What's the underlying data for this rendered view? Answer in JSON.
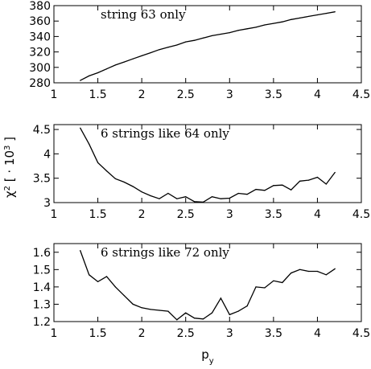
{
  "shared": {
    "xlabel": "p",
    "xlabel_sub": "y",
    "ylabel": "χ",
    "ylabel_sup": "2",
    "ylabel_rest": " [ · 10",
    "ylabel_sup2": "3",
    "ylabel_end": " ]"
  },
  "chart_data": [
    {
      "type": "line",
      "title": "string 63 only",
      "xlim": [
        1,
        4.5
      ],
      "ylim": [
        280,
        380
      ],
      "x_ticks": [
        1,
        1.5,
        2,
        2.5,
        3,
        3.5,
        4,
        4.5
      ],
      "x_tick_labels": [
        "1",
        "1.5",
        "2",
        "2.5",
        "3",
        "3.5",
        "4",
        "4.5"
      ],
      "y_ticks": [
        280,
        300,
        320,
        340,
        360,
        380
      ],
      "y_tick_labels": [
        "280",
        "300",
        "320",
        "340",
        "360",
        "380"
      ],
      "series": [
        {
          "x": [
            1.3,
            1.4,
            1.5,
            1.6,
            1.7,
            1.8,
            1.9,
            2.0,
            2.1,
            2.2,
            2.3,
            2.4,
            2.5,
            2.6,
            2.7,
            2.8,
            2.9,
            3.0,
            3.1,
            3.2,
            3.3,
            3.4,
            3.5,
            3.6,
            3.7,
            3.8,
            3.9,
            4.0,
            4.1,
            4.2
          ],
          "y": [
            283,
            289,
            293,
            298,
            303,
            307,
            311,
            315,
            319,
            323,
            326,
            329,
            333,
            335,
            338,
            341,
            343,
            345,
            348,
            350,
            352,
            355,
            357,
            359,
            362,
            364,
            366,
            368,
            370,
            372
          ]
        }
      ]
    },
    {
      "type": "line",
      "title": "6 strings like 64 only",
      "xlim": [
        1,
        4.5
      ],
      "ylim": [
        3,
        4.6
      ],
      "x_ticks": [
        1,
        1.5,
        2,
        2.5,
        3,
        3.5,
        4,
        4.5
      ],
      "x_tick_labels": [
        "1",
        "1.5",
        "2",
        "2.5",
        "3",
        "3.5",
        "4",
        "4.5"
      ],
      "y_ticks": [
        3,
        3.5,
        4,
        4.5
      ],
      "y_tick_labels": [
        "3",
        "3.5",
        "4",
        "4.5"
      ],
      "series": [
        {
          "x": [
            1.3,
            1.4,
            1.5,
            1.6,
            1.7,
            1.8,
            1.9,
            2.0,
            2.1,
            2.2,
            2.3,
            2.4,
            2.5,
            2.6,
            2.7,
            2.8,
            2.9,
            3.0,
            3.1,
            3.2,
            3.3,
            3.4,
            3.5,
            3.6,
            3.7,
            3.8,
            3.9,
            4.0,
            4.1,
            4.2
          ],
          "y": [
            4.53,
            4.2,
            3.82,
            3.65,
            3.49,
            3.42,
            3.33,
            3.22,
            3.14,
            3.08,
            3.19,
            3.08,
            3.12,
            3.02,
            3.01,
            3.12,
            3.08,
            3.09,
            3.19,
            3.17,
            3.27,
            3.25,
            3.35,
            3.36,
            3.26,
            3.44,
            3.46,
            3.52,
            3.38,
            3.62
          ]
        }
      ]
    },
    {
      "type": "line",
      "title": "6 strings like 72 only",
      "xlim": [
        1,
        4.5
      ],
      "ylim": [
        1.2,
        1.65
      ],
      "x_ticks": [
        1,
        1.5,
        2,
        2.5,
        3,
        3.5,
        4,
        4.5
      ],
      "x_tick_labels": [
        "1",
        "1.5",
        "2",
        "2.5",
        "3",
        "3.5",
        "4",
        "4.5"
      ],
      "y_ticks": [
        1.2,
        1.3,
        1.4,
        1.5,
        1.6
      ],
      "y_tick_labels": [
        "1.2",
        "1.3",
        "1.4",
        "1.5",
        "1.6"
      ],
      "series": [
        {
          "x": [
            1.3,
            1.4,
            1.5,
            1.6,
            1.7,
            1.8,
            1.9,
            2.0,
            2.1,
            2.2,
            2.3,
            2.4,
            2.5,
            2.6,
            2.7,
            2.8,
            2.9,
            3.0,
            3.1,
            3.2,
            3.3,
            3.4,
            3.5,
            3.6,
            3.7,
            3.8,
            3.9,
            4.0,
            4.1,
            4.2
          ],
          "y": [
            1.61,
            1.47,
            1.43,
            1.46,
            1.4,
            1.35,
            1.3,
            1.28,
            1.27,
            1.265,
            1.26,
            1.21,
            1.25,
            1.22,
            1.215,
            1.25,
            1.335,
            1.24,
            1.26,
            1.29,
            1.4,
            1.395,
            1.435,
            1.425,
            1.48,
            1.5,
            1.49,
            1.49,
            1.47,
            1.505
          ]
        }
      ]
    }
  ]
}
